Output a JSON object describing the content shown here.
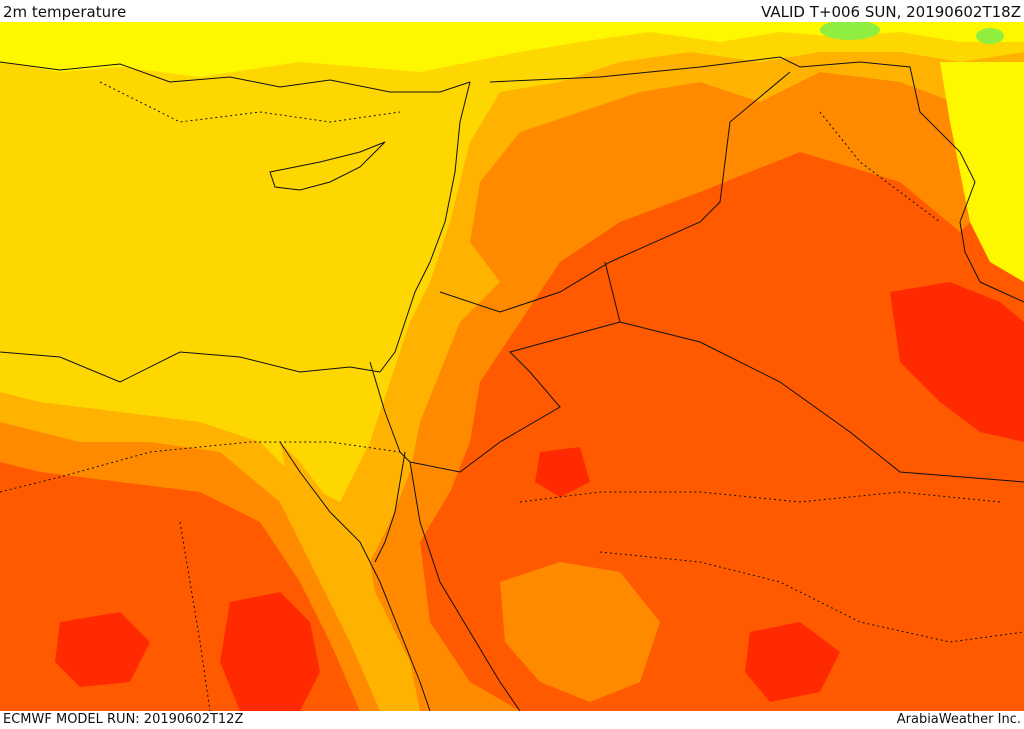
{
  "header": {
    "title": "2m temperature",
    "valid": "VALID T+006 SUN, 20190602T18Z"
  },
  "footer": {
    "model_run": "ECMWF MODEL RUN: 20190602T12Z",
    "credit": "ArabiaWeather Inc."
  },
  "colors": {
    "band_cool": "#fff700",
    "band_mild": "#ffd700",
    "band_warm": "#ffb300",
    "band_hot": "#ff8a00",
    "band_very_hot": "#ff5a00",
    "band_extreme": "#ff2a00",
    "band_cold": "#90ee40",
    "borders": "#111111"
  }
}
